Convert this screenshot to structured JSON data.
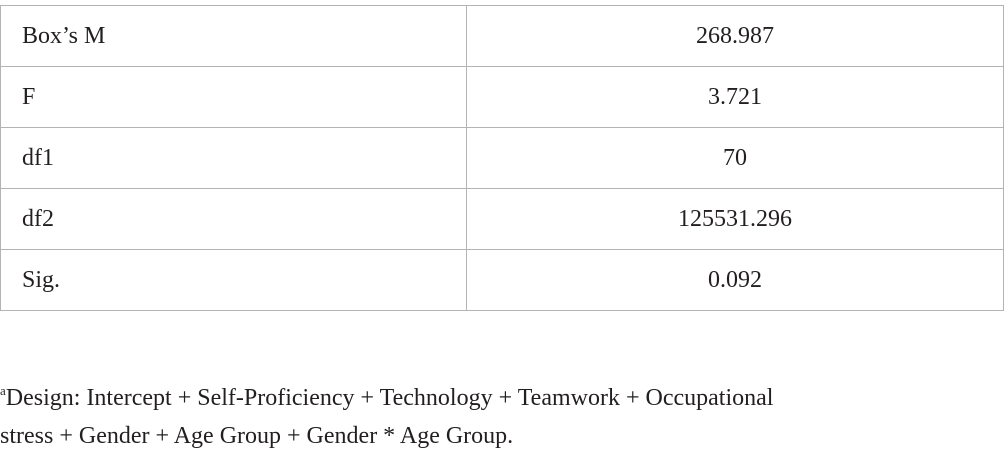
{
  "table": {
    "rows": [
      [
        "Box’s M",
        "268.987"
      ],
      [
        "F",
        "3.721"
      ],
      [
        "df1",
        "70"
      ],
      [
        "df2",
        "125531.296"
      ],
      [
        "Sig.",
        "0.092"
      ]
    ]
  },
  "footnote": {
    "marker": "a",
    "lines": [
      "Design: Intercept + Self-Proficiency + Technology + Teamwork + Occupational",
      "stress + Gender + Age Group + Gender * Age Group."
    ]
  }
}
